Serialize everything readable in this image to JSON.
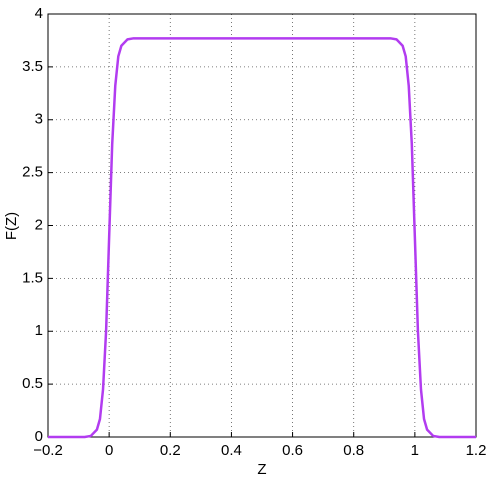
{
  "chart_data": {
    "type": "line",
    "x_label": "Z",
    "y_label": "F(Z)",
    "x": [
      -0.2,
      -0.1,
      -0.08,
      -0.06,
      -0.04,
      -0.03,
      -0.02,
      -0.01,
      0,
      0.01,
      0.02,
      0.03,
      0.04,
      0.06,
      0.08,
      0.2,
      0.4,
      0.6,
      0.8,
      0.92,
      0.94,
      0.96,
      0.97,
      0.98,
      0.99,
      1,
      1.01,
      1.02,
      1.03,
      1.04,
      1.06,
      1.08,
      1.1,
      1.2
    ],
    "series": [
      {
        "color": "#b23cf0",
        "values": [
          0,
          0,
          0,
          0.01,
          0.07,
          0.17,
          0.45,
          1.0,
          1.89,
          2.77,
          3.32,
          3.6,
          3.7,
          3.76,
          3.77,
          3.77,
          3.77,
          3.77,
          3.77,
          3.77,
          3.76,
          3.7,
          3.6,
          3.32,
          2.77,
          1.89,
          1.0,
          0.45,
          0.17,
          0.07,
          0.01,
          0,
          0,
          0
        ]
      }
    ],
    "xlim": [
      -0.2,
      1.2
    ],
    "ylim": [
      0,
      4
    ],
    "xticks": [
      {
        "value": -0.2,
        "label": "−0.2"
      },
      0,
      0.2,
      0.4,
      0.6,
      0.8,
      1,
      1.2
    ],
    "yticks": [
      0,
      0.5,
      1,
      1.5,
      2,
      2.5,
      3,
      3.5,
      4
    ],
    "grid": true
  }
}
